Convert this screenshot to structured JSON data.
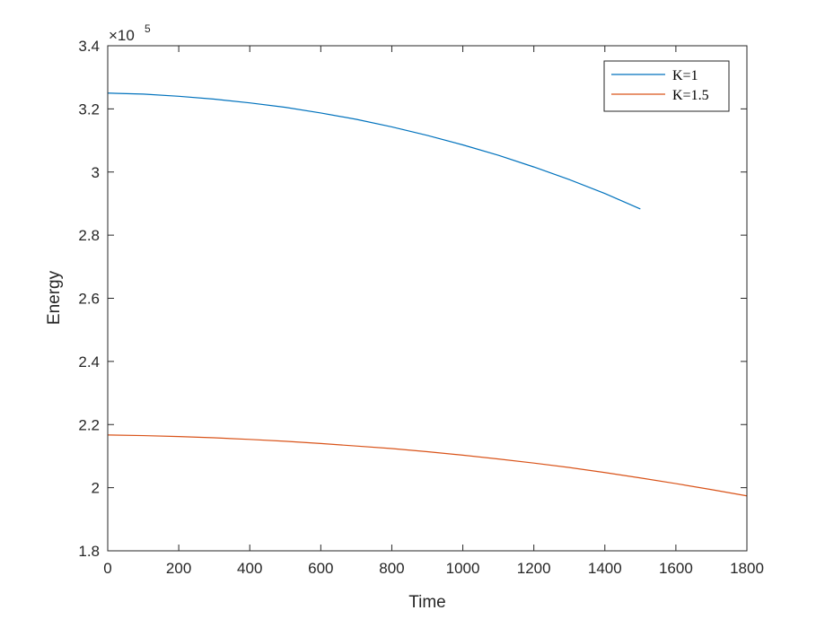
{
  "chart_data": {
    "type": "line",
    "xlabel": "Time",
    "ylabel": "Energy",
    "xlim": [
      0,
      1800
    ],
    "ylim": [
      1.8,
      3.4
    ],
    "y_multiplier": "×10",
    "y_exponent": "5",
    "xticks": [
      "0",
      "200",
      "400",
      "600",
      "800",
      "1000",
      "1200",
      "1400",
      "1600",
      "1800"
    ],
    "yticks": [
      "1.8",
      "2",
      "2.2",
      "2.4",
      "2.6",
      "2.8",
      "3",
      "3.2",
      "3.4"
    ],
    "legend_position": "top-right",
    "series": [
      {
        "name": "K=1",
        "color": "#0072BD",
        "x": [
          0,
          100,
          200,
          300,
          400,
          500,
          600,
          700,
          800,
          900,
          1000,
          1100,
          1200,
          1300,
          1400,
          1500
        ],
        "y": [
          3.25,
          3.247,
          3.24,
          3.231,
          3.219,
          3.205,
          3.187,
          3.167,
          3.143,
          3.116,
          3.086,
          3.053,
          3.016,
          2.976,
          2.932,
          2.883
        ]
      },
      {
        "name": "K=1.5",
        "color": "#D95319",
        "x": [
          0,
          100,
          200,
          300,
          400,
          500,
          600,
          700,
          800,
          900,
          1000,
          1100,
          1200,
          1300,
          1400,
          1500,
          1600,
          1700,
          1800
        ],
        "y": [
          2.167,
          2.165,
          2.162,
          2.158,
          2.153,
          2.147,
          2.14,
          2.132,
          2.124,
          2.114,
          2.103,
          2.091,
          2.078,
          2.064,
          2.048,
          2.031,
          2.013,
          1.994,
          1.974
        ]
      }
    ]
  }
}
